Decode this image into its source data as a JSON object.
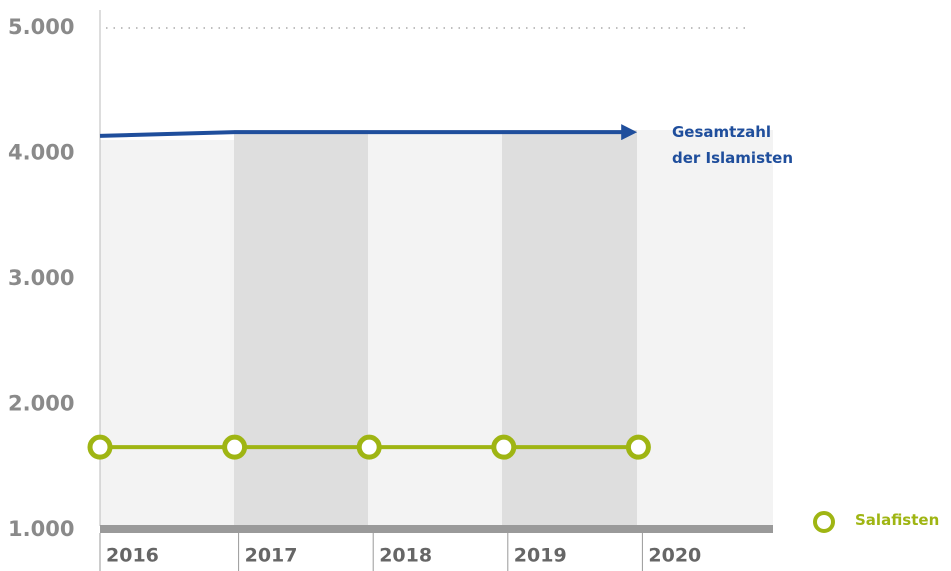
{
  "chart_data": {
    "type": "line",
    "categories": [
      "2016",
      "2017",
      "2018",
      "2019",
      "2020"
    ],
    "series": [
      {
        "name": "Gesamtzahl der Islamisten",
        "color": "#1f4e9c",
        "values": [
          4140,
          4170,
          4170,
          4170,
          4170
        ]
      },
      {
        "name": "Salafisten",
        "color": "#9fb513",
        "values": [
          1660,
          1660,
          1660,
          1660,
          1660
        ]
      }
    ],
    "ylim": [
      1000,
      5000
    ],
    "yticks": [
      {
        "value": 1000,
        "label": "1.000"
      },
      {
        "value": 2000,
        "label": "2.000"
      },
      {
        "value": 3000,
        "label": "3.000"
      },
      {
        "value": 4000,
        "label": "4.000"
      },
      {
        "value": 5000,
        "label": "5.000"
      }
    ]
  }
}
